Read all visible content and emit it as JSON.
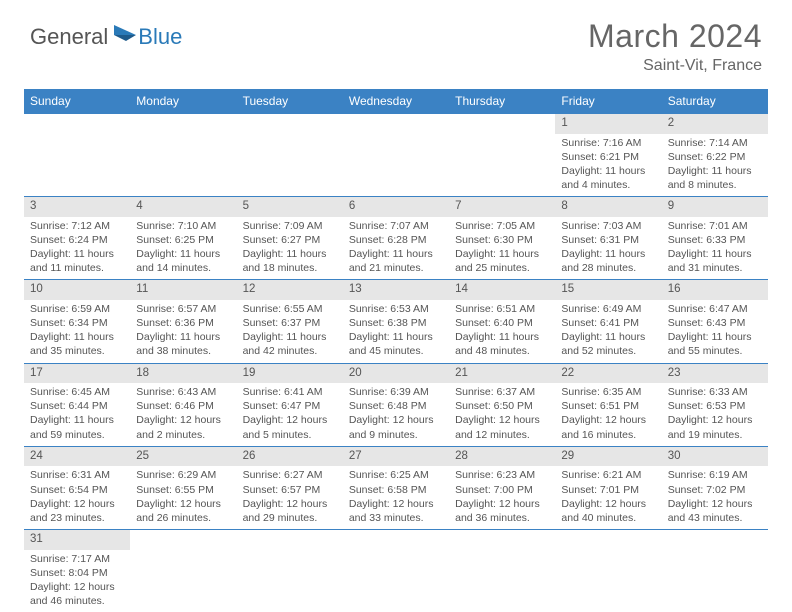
{
  "brand": {
    "general": "General",
    "blue": "Blue"
  },
  "title": "March 2024",
  "location": "Saint-Vit, France",
  "colors": {
    "header_bg": "#3b82c4",
    "header_text": "#ffffff",
    "daynum_bg": "#e6e6e6",
    "border": "#3b82c4",
    "text": "#555555",
    "brand_blue": "#2a7ab8"
  },
  "weekdays": [
    "Sunday",
    "Monday",
    "Tuesday",
    "Wednesday",
    "Thursday",
    "Friday",
    "Saturday"
  ],
  "weeks": [
    [
      null,
      null,
      null,
      null,
      null,
      {
        "d": "1",
        "sr": "7:16 AM",
        "ss": "6:21 PM",
        "dlh": "11",
        "dlm": "4"
      },
      {
        "d": "2",
        "sr": "7:14 AM",
        "ss": "6:22 PM",
        "dlh": "11",
        "dlm": "8"
      }
    ],
    [
      {
        "d": "3",
        "sr": "7:12 AM",
        "ss": "6:24 PM",
        "dlh": "11",
        "dlm": "11"
      },
      {
        "d": "4",
        "sr": "7:10 AM",
        "ss": "6:25 PM",
        "dlh": "11",
        "dlm": "14"
      },
      {
        "d": "5",
        "sr": "7:09 AM",
        "ss": "6:27 PM",
        "dlh": "11",
        "dlm": "18"
      },
      {
        "d": "6",
        "sr": "7:07 AM",
        "ss": "6:28 PM",
        "dlh": "11",
        "dlm": "21"
      },
      {
        "d": "7",
        "sr": "7:05 AM",
        "ss": "6:30 PM",
        "dlh": "11",
        "dlm": "25"
      },
      {
        "d": "8",
        "sr": "7:03 AM",
        "ss": "6:31 PM",
        "dlh": "11",
        "dlm": "28"
      },
      {
        "d": "9",
        "sr": "7:01 AM",
        "ss": "6:33 PM",
        "dlh": "11",
        "dlm": "31"
      }
    ],
    [
      {
        "d": "10",
        "sr": "6:59 AM",
        "ss": "6:34 PM",
        "dlh": "11",
        "dlm": "35"
      },
      {
        "d": "11",
        "sr": "6:57 AM",
        "ss": "6:36 PM",
        "dlh": "11",
        "dlm": "38"
      },
      {
        "d": "12",
        "sr": "6:55 AM",
        "ss": "6:37 PM",
        "dlh": "11",
        "dlm": "42"
      },
      {
        "d": "13",
        "sr": "6:53 AM",
        "ss": "6:38 PM",
        "dlh": "11",
        "dlm": "45"
      },
      {
        "d": "14",
        "sr": "6:51 AM",
        "ss": "6:40 PM",
        "dlh": "11",
        "dlm": "48"
      },
      {
        "d": "15",
        "sr": "6:49 AM",
        "ss": "6:41 PM",
        "dlh": "11",
        "dlm": "52"
      },
      {
        "d": "16",
        "sr": "6:47 AM",
        "ss": "6:43 PM",
        "dlh": "11",
        "dlm": "55"
      }
    ],
    [
      {
        "d": "17",
        "sr": "6:45 AM",
        "ss": "6:44 PM",
        "dlh": "11",
        "dlm": "59"
      },
      {
        "d": "18",
        "sr": "6:43 AM",
        "ss": "6:46 PM",
        "dlh": "12",
        "dlm": "2"
      },
      {
        "d": "19",
        "sr": "6:41 AM",
        "ss": "6:47 PM",
        "dlh": "12",
        "dlm": "5"
      },
      {
        "d": "20",
        "sr": "6:39 AM",
        "ss": "6:48 PM",
        "dlh": "12",
        "dlm": "9"
      },
      {
        "d": "21",
        "sr": "6:37 AM",
        "ss": "6:50 PM",
        "dlh": "12",
        "dlm": "12"
      },
      {
        "d": "22",
        "sr": "6:35 AM",
        "ss": "6:51 PM",
        "dlh": "12",
        "dlm": "16"
      },
      {
        "d": "23",
        "sr": "6:33 AM",
        "ss": "6:53 PM",
        "dlh": "12",
        "dlm": "19"
      }
    ],
    [
      {
        "d": "24",
        "sr": "6:31 AM",
        "ss": "6:54 PM",
        "dlh": "12",
        "dlm": "23"
      },
      {
        "d": "25",
        "sr": "6:29 AM",
        "ss": "6:55 PM",
        "dlh": "12",
        "dlm": "26"
      },
      {
        "d": "26",
        "sr": "6:27 AM",
        "ss": "6:57 PM",
        "dlh": "12",
        "dlm": "29"
      },
      {
        "d": "27",
        "sr": "6:25 AM",
        "ss": "6:58 PM",
        "dlh": "12",
        "dlm": "33"
      },
      {
        "d": "28",
        "sr": "6:23 AM",
        "ss": "7:00 PM",
        "dlh": "12",
        "dlm": "36"
      },
      {
        "d": "29",
        "sr": "6:21 AM",
        "ss": "7:01 PM",
        "dlh": "12",
        "dlm": "40"
      },
      {
        "d": "30",
        "sr": "6:19 AM",
        "ss": "7:02 PM",
        "dlh": "12",
        "dlm": "43"
      }
    ],
    [
      {
        "d": "31",
        "sr": "7:17 AM",
        "ss": "8:04 PM",
        "dlh": "12",
        "dlm": "46"
      },
      null,
      null,
      null,
      null,
      null,
      null
    ]
  ],
  "labels": {
    "sunrise": "Sunrise:",
    "sunset": "Sunset:",
    "daylight": "Daylight:",
    "hours": "hours",
    "and": "and",
    "minutes": "minutes."
  }
}
